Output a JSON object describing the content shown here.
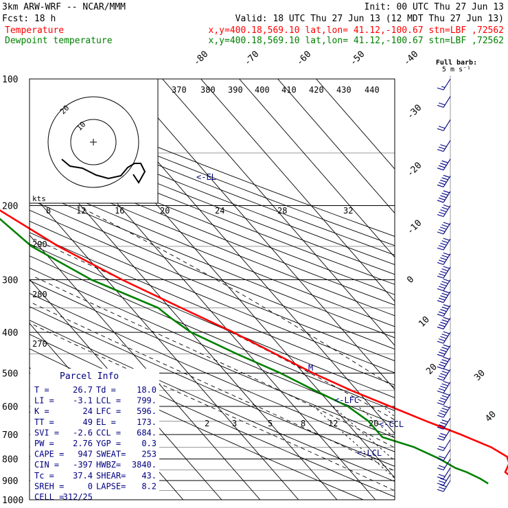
{
  "header": {
    "model": "3km ARW-WRF -- NCAR/MMM",
    "init": "Init: 00 UTC Thu 27 Jun 13",
    "fcst": "Fcst:   18 h",
    "valid": "Valid: 18 UTC Thu 27 Jun 13 (12 MDT Thu 27 Jun 13)",
    "temp_label": "Temperature",
    "temp_loc": "x,y=400.18,569.10   lat,lon= 41.12,-100.67  stn=LBF ,72562",
    "dew_label": "Dewpoint temperature",
    "dew_loc": "x,y=400.18,569.10   lat,lon= 41.12,-100.67  stn=LBF ,72562"
  },
  "colors": {
    "temperature": "#ff0000",
    "dewpoint": "#008000",
    "info": "#000080",
    "grid": "#000000"
  },
  "barb_legend": {
    "line1": "Full barb:",
    "line2": "5 m s⁻¹"
  },
  "parcel_info": {
    "title": "Parcel Info",
    "rows": [
      {
        "a": "T  =",
        "av": "26.7",
        "b": "Td =",
        "bv": "18.0"
      },
      {
        "a": "LI =",
        "av": "-3.1",
        "b": "LCL =",
        "bv": "799."
      },
      {
        "a": "K  =",
        "av": "24",
        "b": "LFC =",
        "bv": "596."
      },
      {
        "a": "TT =",
        "av": "49",
        "b": "EL =",
        "bv": "173."
      },
      {
        "a": "SVI =",
        "av": "-2.6",
        "b": "CCL =",
        "bv": "684."
      },
      {
        "a": "PW =",
        "av": "2.76",
        "b": "YGP =",
        "bv": "0.3"
      },
      {
        "a": "CAPE =",
        "av": "947",
        "b": "SWEAT=",
        "bv": "253"
      },
      {
        "a": "CIN =",
        "av": "-397",
        "b": "HWBZ=",
        "bv": "3840."
      },
      {
        "a": "Tc =",
        "av": "37.4",
        "b": "SHEAR=",
        "bv": "43."
      },
      {
        "a": "SREH =",
        "av": "0",
        "b": "LAPSE=",
        "bv": "8.2"
      },
      {
        "a": "CELL =",
        "av": "312/25",
        "b": "",
        "bv": ""
      }
    ]
  },
  "hodograph": {
    "kts_label": "kts",
    "ring_labels": [
      "20",
      "10"
    ]
  },
  "chart_data": {
    "type": "line",
    "title": "",
    "pressure_levels": [
      100,
      200,
      300,
      400,
      500,
      600,
      700,
      800,
      900,
      1000
    ],
    "isotherm_labels": [
      "-80",
      "-70",
      "-60",
      "-50",
      "-40",
      "-30",
      "-20",
      "-10",
      "0",
      "10",
      "20",
      "30",
      "40"
    ],
    "theta_labels": [
      "370",
      "380",
      "390",
      "400",
      "410",
      "420",
      "430",
      "440",
      "290",
      "280",
      "270"
    ],
    "mixing_ratio_labels": [
      "8",
      "12",
      "16",
      "20",
      "24",
      "28",
      "32"
    ],
    "mixing_ratio_labels_low": [
      "2",
      "3",
      "5",
      "8",
      "12",
      "20"
    ],
    "annotations": [
      "<-EL",
      "<-LFC",
      "<-CCL",
      "<-LCL",
      "M"
    ],
    "series": [
      {
        "name": "Temperature",
        "points": [
          [
            920,
            24
          ],
          [
            900,
            21
          ],
          [
            860,
            20
          ],
          [
            820,
            23
          ],
          [
            790,
            24
          ],
          [
            750,
            22
          ],
          [
            700,
            17
          ],
          [
            650,
            11
          ],
          [
            600,
            5
          ],
          [
            550,
            -1.5
          ],
          [
            500,
            -7.5
          ],
          [
            450,
            -13
          ],
          [
            400,
            -19
          ],
          [
            350,
            -27
          ],
          [
            300,
            -36
          ],
          [
            250,
            -45
          ],
          [
            200,
            -53
          ],
          [
            170,
            -58
          ],
          [
            150,
            -59
          ],
          [
            130,
            -58
          ],
          [
            110,
            -60
          ],
          [
            100,
            -61
          ]
        ]
      },
      {
        "name": "Dewpoint temperature",
        "points": [
          [
            915,
            13
          ],
          [
            890,
            12
          ],
          [
            860,
            10
          ],
          [
            840,
            8
          ],
          [
            800,
            6
          ],
          [
            750,
            2
          ],
          [
            710,
            -4
          ],
          [
            650,
            -4
          ],
          [
            600,
            -6
          ],
          [
            550,
            -11
          ],
          [
            500,
            -16
          ],
          [
            450,
            -23
          ],
          [
            400,
            -30
          ],
          [
            370,
            -32
          ],
          [
            350,
            -33
          ],
          [
            300,
            -44
          ],
          [
            250,
            -52
          ],
          [
            200,
            -55
          ],
          [
            180,
            -56
          ],
          [
            160,
            -66
          ],
          [
            140,
            -71
          ],
          [
            120,
            -76
          ],
          [
            100,
            -80
          ]
        ]
      }
    ],
    "wind_barbs": [
      {
        "p": 100,
        "speed": 8
      },
      {
        "p": 110,
        "speed": 10
      },
      {
        "p": 125,
        "speed": 10
      },
      {
        "p": 140,
        "speed": 15
      },
      {
        "p": 155,
        "speed": 20
      },
      {
        "p": 170,
        "speed": 25
      },
      {
        "p": 185,
        "speed": 25
      },
      {
        "p": 200,
        "speed": 25
      },
      {
        "p": 220,
        "speed": 25
      },
      {
        "p": 240,
        "speed": 25
      },
      {
        "p": 260,
        "speed": 25
      },
      {
        "p": 280,
        "speed": 25
      },
      {
        "p": 300,
        "speed": 25
      },
      {
        "p": 320,
        "speed": 25
      },
      {
        "p": 345,
        "speed": 25
      },
      {
        "p": 370,
        "speed": 25
      },
      {
        "p": 400,
        "speed": 25
      },
      {
        "p": 430,
        "speed": 25
      },
      {
        "p": 460,
        "speed": 25
      },
      {
        "p": 490,
        "speed": 25
      },
      {
        "p": 525,
        "speed": 25
      },
      {
        "p": 560,
        "speed": 25
      },
      {
        "p": 600,
        "speed": 25
      },
      {
        "p": 640,
        "speed": 20
      },
      {
        "p": 680,
        "speed": 15
      },
      {
        "p": 720,
        "speed": 10
      },
      {
        "p": 760,
        "speed": 10
      },
      {
        "p": 800,
        "speed": 10
      },
      {
        "p": 840,
        "speed": 10
      },
      {
        "p": 870,
        "speed": 15
      },
      {
        "p": 900,
        "speed": 15
      }
    ]
  }
}
